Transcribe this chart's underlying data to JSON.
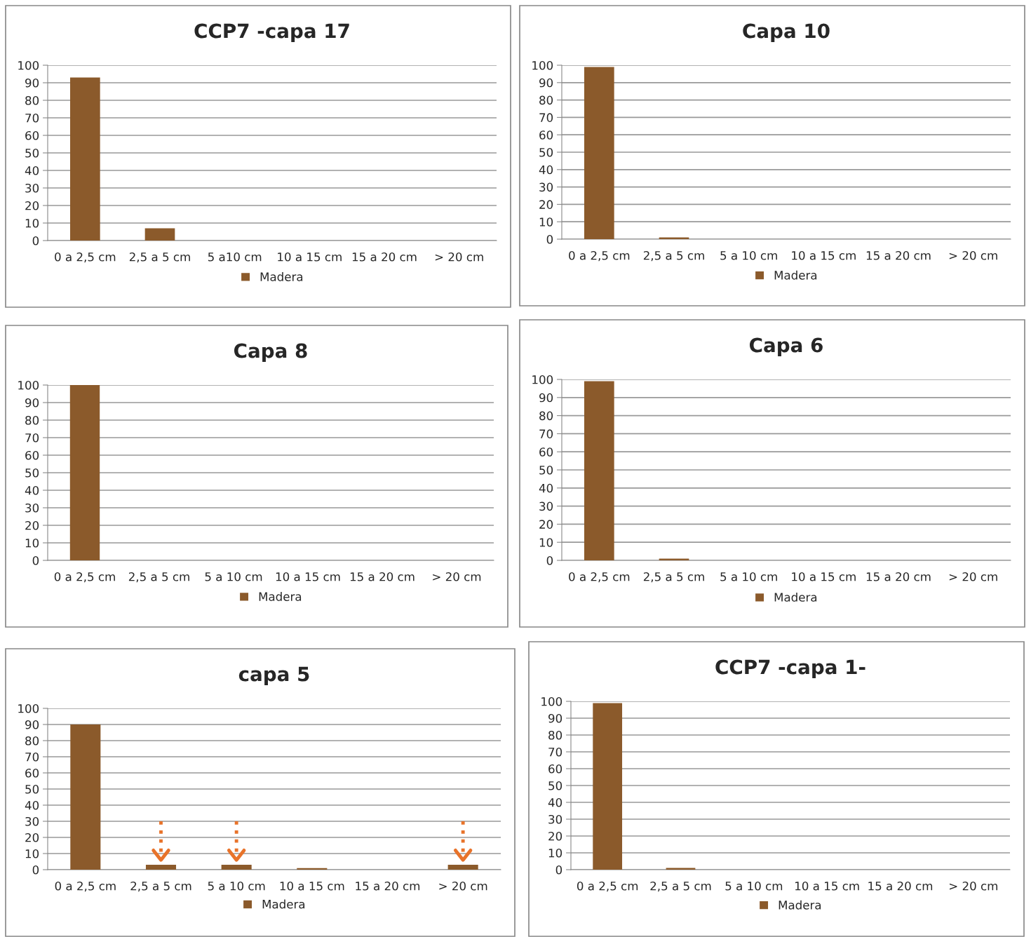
{
  "chart_data": [
    {
      "type": "bar",
      "title": "CCP7 -capa 17",
      "categories": [
        "0 a 2,5 cm",
        "2,5 a 5 cm",
        "5 a10 cm",
        "10 a 15 cm",
        "15 a 20 cm",
        "> 20 cm"
      ],
      "series": [
        {
          "name": "Madera",
          "color": "#8b5a2b",
          "values": [
            93,
            7,
            0,
            0,
            0,
            0
          ]
        }
      ],
      "ylim": [
        0,
        100
      ],
      "yticks": [
        0,
        10,
        20,
        30,
        40,
        50,
        60,
        70,
        80,
        90,
        100
      ],
      "grid": "y",
      "legend": "bottom"
    },
    {
      "type": "bar",
      "title": "Capa 10",
      "categories": [
        "0 a 2,5 cm",
        "2,5 a 5 cm",
        "5 a 10 cm",
        "10 a 15 cm",
        "15 a 20 cm",
        "> 20 cm"
      ],
      "series": [
        {
          "name": "Madera",
          "color": "#8b5a2b",
          "values": [
            99,
            1,
            0,
            0,
            0,
            0
          ]
        }
      ],
      "ylim": [
        0,
        100
      ],
      "yticks": [
        0,
        10,
        20,
        30,
        40,
        50,
        60,
        70,
        80,
        90,
        100
      ],
      "grid": "y",
      "legend": "bottom"
    },
    {
      "type": "bar",
      "title": "Capa 8",
      "categories": [
        "0 a 2,5 cm",
        "2,5 a 5 cm",
        "5 a 10 cm",
        "10 a 15 cm",
        "15 a 20 cm",
        "> 20 cm"
      ],
      "series": [
        {
          "name": "Madera",
          "color": "#8b5a2b",
          "values": [
            100,
            0,
            0,
            0,
            0,
            0
          ]
        }
      ],
      "ylim": [
        0,
        100
      ],
      "yticks": [
        0,
        10,
        20,
        30,
        40,
        50,
        60,
        70,
        80,
        90,
        100
      ],
      "grid": "y",
      "legend": "bottom"
    },
    {
      "type": "bar",
      "title": "Capa 6",
      "categories": [
        "0 a 2,5 cm",
        "2,5 a 5 cm",
        "5 a 10 cm",
        "10 a 15 cm",
        "15 a 20 cm",
        "> 20 cm"
      ],
      "series": [
        {
          "name": "Madera",
          "color": "#8b5a2b",
          "values": [
            99,
            1,
            0,
            0,
            0,
            0
          ]
        }
      ],
      "ylim": [
        0,
        100
      ],
      "yticks": [
        0,
        10,
        20,
        30,
        40,
        50,
        60,
        70,
        80,
        90,
        100
      ],
      "grid": "y",
      "legend": "bottom"
    },
    {
      "type": "bar",
      "title": "capa 5",
      "categories": [
        "0 a 2,5 cm",
        "2,5 a 5 cm",
        "5 a 10 cm",
        "10 a 15 cm",
        "15 a 20 cm",
        "> 20 cm"
      ],
      "series": [
        {
          "name": "Madera",
          "color": "#8b5a2b",
          "values": [
            90,
            3,
            3,
            1,
            0,
            3
          ]
        }
      ],
      "ylim": [
        0,
        100
      ],
      "yticks": [
        0,
        10,
        20,
        30,
        40,
        50,
        60,
        70,
        80,
        90,
        100
      ],
      "grid": "y",
      "legend": "bottom"
    },
    {
      "type": "bar",
      "title": "CCP7 -capa 1-",
      "categories": [
        "0 a 2,5 cm",
        "2,5 a 5 cm",
        "5 a 10 cm",
        "10 a 15 cm",
        "15 a 20 cm",
        "> 20 cm"
      ],
      "series": [
        {
          "name": "Madera",
          "color": "#8b5a2b",
          "values": [
            99,
            1,
            0,
            0,
            0,
            0
          ]
        }
      ],
      "ylim": [
        0,
        100
      ],
      "yticks": [
        0,
        10,
        20,
        30,
        40,
        50,
        60,
        70,
        80,
        90,
        100
      ],
      "grid": "y",
      "legend": "bottom"
    }
  ]
}
